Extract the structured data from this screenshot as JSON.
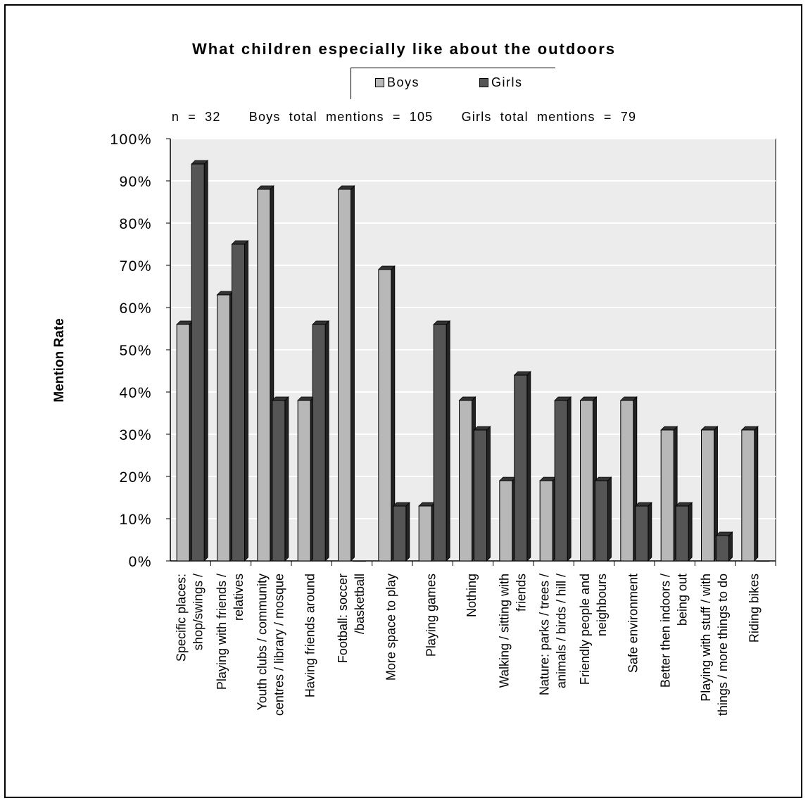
{
  "chart_data": {
    "type": "bar",
    "title": "What children especially like about the outdoors",
    "subtitle": {
      "n": "n = 32",
      "boys_total": "Boys total mentions = 105",
      "girls_total": "Girls total mentions = 79"
    },
    "ylabel": "Mention Rate",
    "xlabel": "",
    "ylim": [
      0,
      100
    ],
    "y_ticks": [
      "0%",
      "10%",
      "20%",
      "30%",
      "40%",
      "50%",
      "60%",
      "70%",
      "80%",
      "90%",
      "100%"
    ],
    "legend_position": "top-center",
    "grid": true,
    "categories": [
      [
        "Specific places:",
        "shop/swings /"
      ],
      [
        "Playing with friends /",
        "relatives"
      ],
      [
        "Youth clubs / community",
        "centres / library / mosque"
      ],
      [
        "Having friends around"
      ],
      [
        "Football: soccer",
        "/basketball"
      ],
      [
        "More space to play"
      ],
      [
        "Playing games"
      ],
      [
        "Nothing"
      ],
      [
        "Walking / sitting with",
        "friends"
      ],
      [
        "Nature: parks / trees /",
        "animals / birds / hill /"
      ],
      [
        "Friendly people and",
        "neighbours"
      ],
      [
        "Safe environment"
      ],
      [
        "Better then indoors /",
        "being out"
      ],
      [
        "Playing with stuff / with",
        "things / more things to do"
      ],
      [
        "Riding bikes"
      ]
    ],
    "series": [
      {
        "name": "Boys",
        "color": "#b8b8b8",
        "values": [
          56,
          63,
          88,
          38,
          88,
          69,
          13,
          38,
          19,
          19,
          38,
          38,
          31,
          31,
          31
        ]
      },
      {
        "name": "Girls",
        "color": "#555555",
        "values": [
          94,
          75,
          38,
          56,
          0,
          13,
          56,
          31,
          44,
          38,
          19,
          13,
          13,
          6,
          0
        ]
      }
    ]
  }
}
